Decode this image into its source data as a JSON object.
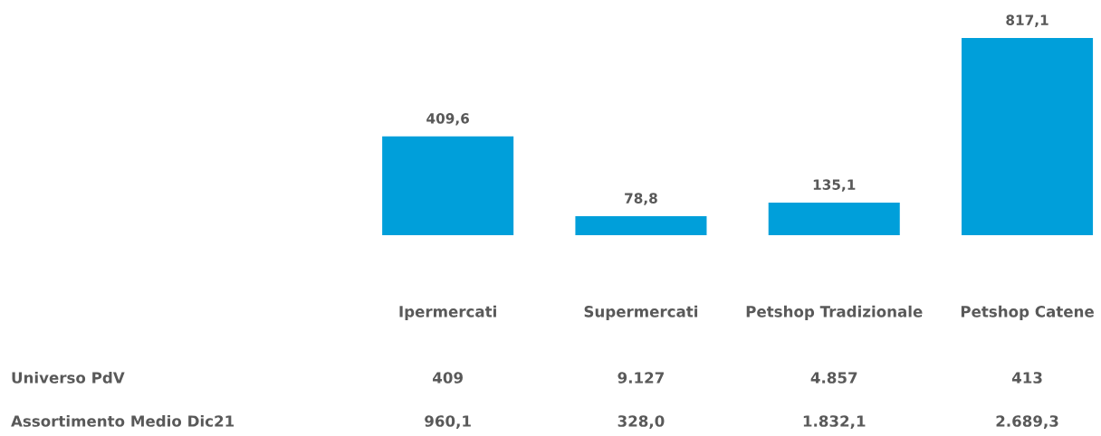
{
  "chart_data": {
    "type": "bar",
    "categories": [
      "Ipermercati",
      "Supermercati",
      "Petshop Tradizionale",
      "Petshop Catene"
    ],
    "values": [
      409.6,
      78.8,
      135.1,
      817.1
    ],
    "value_labels": [
      "409,6",
      "78,8",
      "135,1",
      "817,1"
    ],
    "color": "#009fda",
    "annotations": [
      "Universo PdV",
      "409",
      "9.127",
      "4.857",
      "413",
      "Assortimento Medio Dic21",
      "960,1",
      "328,0",
      "1.832,1",
      "2.689,3"
    ]
  }
}
